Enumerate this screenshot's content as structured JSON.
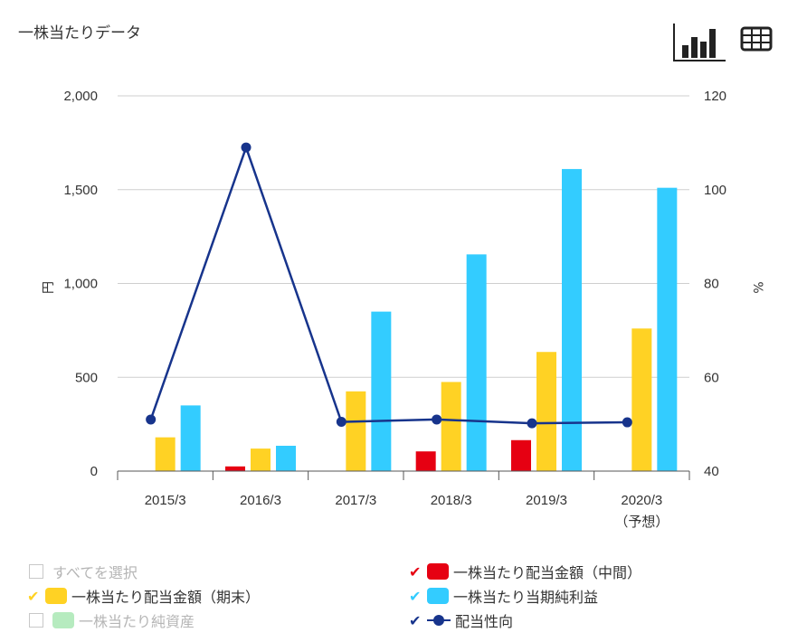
{
  "header": {
    "title": "一株当たりデータ",
    "chart_view": "chart-view",
    "table_view": "table-view"
  },
  "chart_data": {
    "type": "bar",
    "categories": [
      "2015/3",
      "2016/3",
      "2017/3",
      "2018/3",
      "2019/3",
      "2020/3"
    ],
    "category_sublabels": [
      "",
      "",
      "",
      "",
      "",
      "（予想）"
    ],
    "y_left": {
      "label": "円",
      "ticks": [
        "2,000",
        "1,500",
        "1,000",
        "500",
        "0"
      ],
      "range": [
        0,
        2000
      ]
    },
    "y_right": {
      "label": "%",
      "ticks": [
        "120",
        "100",
        "80",
        "60",
        "40"
      ],
      "range": [
        40,
        120
      ]
    },
    "series": [
      {
        "name": "一株当たり配当金額（中間）",
        "color": "#e60012",
        "axis": "left",
        "values": [
          null,
          25,
          null,
          105,
          165,
          null
        ]
      },
      {
        "name": "一株当たり配当金額（期末）",
        "color": "#ffd224",
        "axis": "left",
        "values": [
          180,
          120,
          425,
          475,
          635,
          760
        ]
      },
      {
        "name": "一株当たり当期純利益",
        "color": "#33ccff",
        "axis": "left",
        "values": [
          350,
          135,
          850,
          1155,
          1610,
          1510
        ]
      },
      {
        "name": "配当性向",
        "type": "line",
        "color": "#17348c",
        "axis": "right",
        "values": [
          51.0,
          109.0,
          50.5,
          51.0,
          50.2,
          50.4
        ]
      }
    ]
  },
  "legend": {
    "select_all": "すべてを選択",
    "interim": "一株当たり配当金額（中間）",
    "year_end": "一株当たり配当金額（期末）",
    "net_income": "一株当たり当期純利益",
    "net_assets": "一株当たり純資産",
    "payout": "配当性向"
  }
}
